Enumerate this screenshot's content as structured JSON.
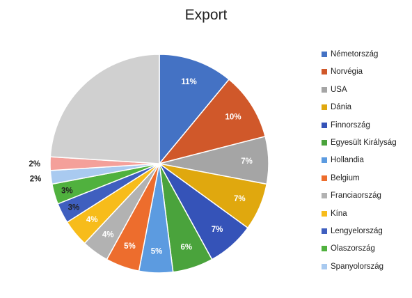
{
  "chart_data": {
    "type": "pie",
    "title": "Export",
    "legend_position": "right",
    "slices": [
      {
        "name": "Németország",
        "value": 11,
        "label": "11%",
        "color": "#4472C4",
        "label_color": "#ffffff"
      },
      {
        "name": "Norvégia",
        "value": 10,
        "label": "10%",
        "color": "#D0582A",
        "label_color": "#ffffff"
      },
      {
        "name": "USA",
        "value": 7,
        "label": "7%",
        "color": "#A5A5A5",
        "label_color": "#ffffff"
      },
      {
        "name": "Dánia",
        "value": 7,
        "label": "7%",
        "color": "#E0A80E",
        "label_color": "#ffffff"
      },
      {
        "name": "Finnország",
        "value": 7,
        "label": "7%",
        "color": "#3553B8",
        "label_color": "#ffffff"
      },
      {
        "name": "Egyesült Királyság",
        "value": 6,
        "label": "6%",
        "color": "#4AA33C",
        "label_color": "#ffffff"
      },
      {
        "name": "Hollandia",
        "value": 5,
        "label": "5%",
        "color": "#5C9BE0",
        "label_color": "#ffffff"
      },
      {
        "name": "Belgium",
        "value": 5,
        "label": "5%",
        "color": "#ED6D2D",
        "label_color": "#ffffff"
      },
      {
        "name": "Franciaország",
        "value": 4,
        "label": "4%",
        "color": "#B2B2B2",
        "label_color": "#ffffff"
      },
      {
        "name": "Kína",
        "value": 4,
        "label": "4%",
        "color": "#F7BC1B",
        "label_color": "#ffffff"
      },
      {
        "name": "Lengyelország",
        "value": 3,
        "label": "3%",
        "color": "#3F5FBF",
        "label_color": "#222222"
      },
      {
        "name": "Olaszország",
        "value": 3,
        "label": "3%",
        "color": "#50B13E",
        "label_color": "#222222"
      },
      {
        "name": "Spanyolország",
        "value": 2,
        "label": "2%",
        "color": "#A9CAF0",
        "label_color": "#222222"
      },
      {
        "name": "",
        "value": 2,
        "label": "2%",
        "color": "#F4A09A",
        "label_color": "#222222"
      },
      {
        "name": "",
        "value": 24,
        "label": "",
        "color": "#D0D0D0",
        "label_color": "#ffffff"
      }
    ]
  }
}
